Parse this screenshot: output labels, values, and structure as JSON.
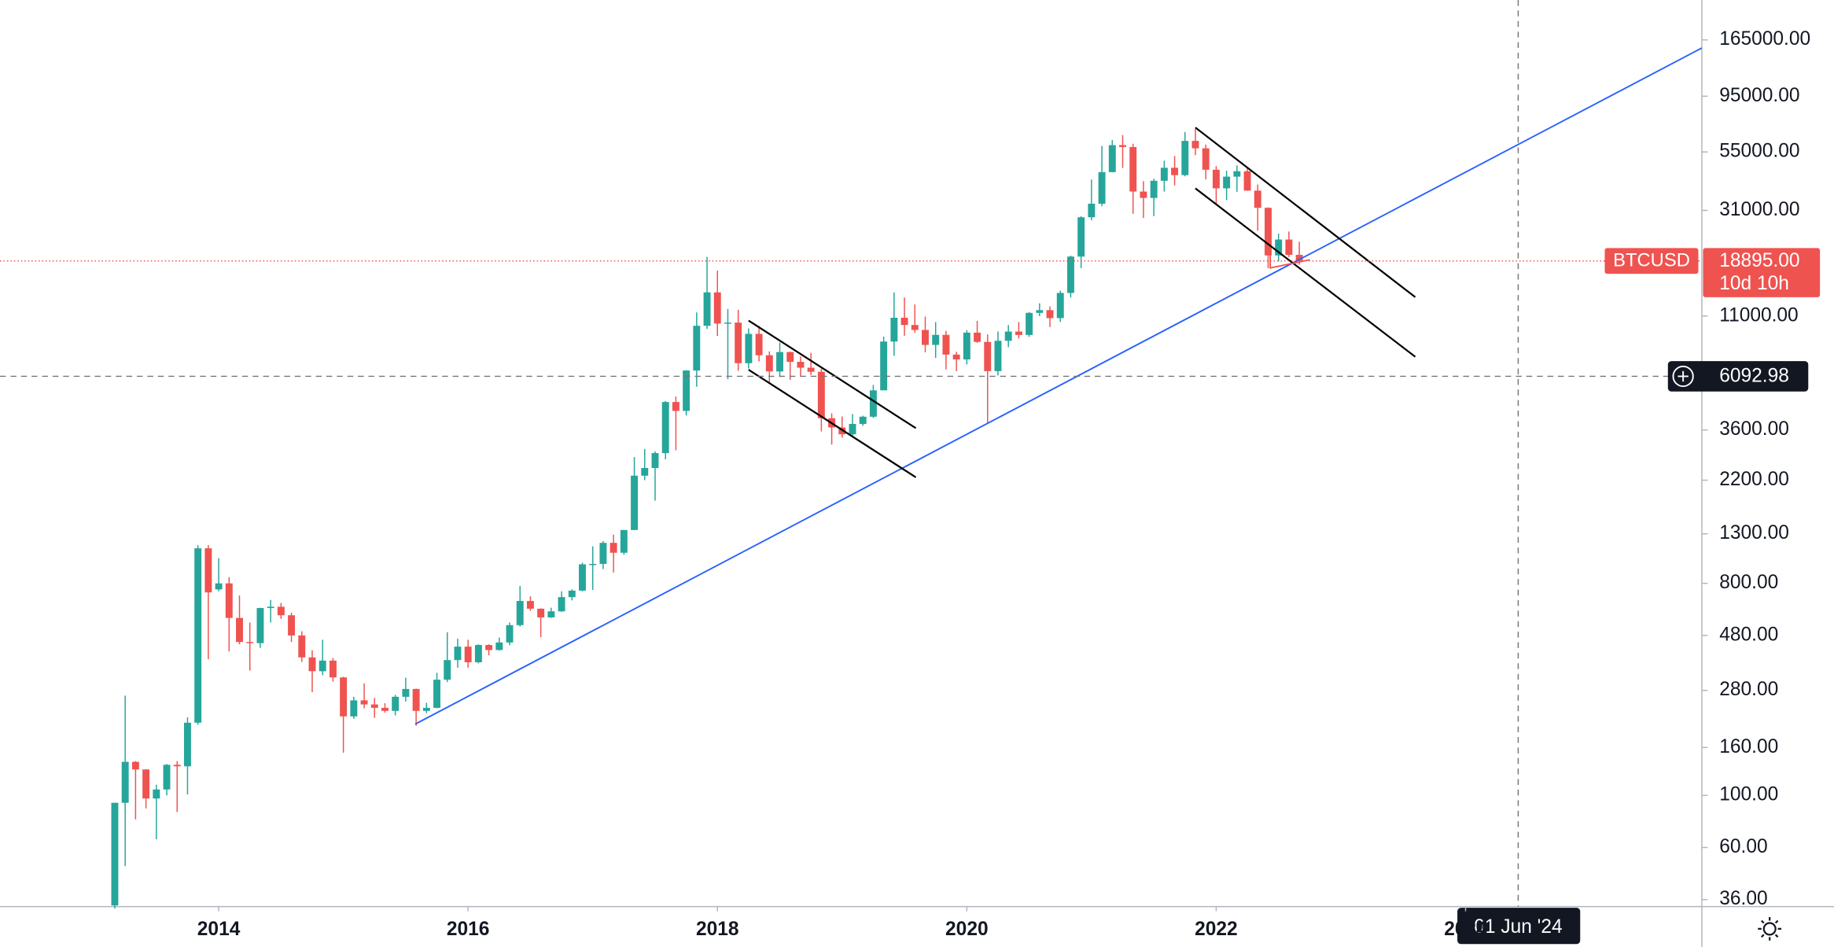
{
  "chart_data": {
    "type": "candlestick",
    "symbol": "BTCUSD",
    "log_scale": true,
    "up_color": "#26a69a",
    "down_color": "#ef5350",
    "x": [
      "2013-03",
      "2013-04",
      "2013-05",
      "2013-06",
      "2013-07",
      "2013-08",
      "2013-09",
      "2013-10",
      "2013-11",
      "2013-12",
      "2014-01",
      "2014-02",
      "2014-03",
      "2014-04",
      "2014-05",
      "2014-06",
      "2014-07",
      "2014-08",
      "2014-09",
      "2014-10",
      "2014-11",
      "2014-12",
      "2015-01",
      "2015-02",
      "2015-03",
      "2015-04",
      "2015-05",
      "2015-06",
      "2015-07",
      "2015-08",
      "2015-09",
      "2015-10",
      "2015-11",
      "2015-12",
      "2016-01",
      "2016-02",
      "2016-03",
      "2016-04",
      "2016-05",
      "2016-06",
      "2016-07",
      "2016-08",
      "2016-09",
      "2016-10",
      "2016-11",
      "2016-12",
      "2017-01",
      "2017-02",
      "2017-03",
      "2017-04",
      "2017-05",
      "2017-06",
      "2017-07",
      "2017-08",
      "2017-09",
      "2017-10",
      "2017-11",
      "2017-12",
      "2018-01",
      "2018-02",
      "2018-03",
      "2018-04",
      "2018-05",
      "2018-06",
      "2018-07",
      "2018-08",
      "2018-09",
      "2018-10",
      "2018-11",
      "2018-12",
      "2019-01",
      "2019-02",
      "2019-03",
      "2019-04",
      "2019-05",
      "2019-06",
      "2019-07",
      "2019-08",
      "2019-09",
      "2019-10",
      "2019-11",
      "2019-12",
      "2020-01",
      "2020-02",
      "2020-03",
      "2020-04",
      "2020-05",
      "2020-06",
      "2020-07",
      "2020-08",
      "2020-09",
      "2020-10",
      "2020-11",
      "2020-12",
      "2021-01",
      "2021-02",
      "2021-03",
      "2021-04",
      "2021-05",
      "2021-06",
      "2021-07",
      "2021-08",
      "2021-09",
      "2021-10",
      "2021-11",
      "2021-12",
      "2022-01",
      "2022-02",
      "2022-03",
      "2022-04",
      "2022-05",
      "2022-06",
      "2022-07",
      "2022-08",
      "2022-09"
    ],
    "open": [
      34,
      93,
      139,
      129,
      97,
      106,
      135,
      133,
      204,
      1128,
      754,
      800,
      570,
      450,
      445,
      628,
      636,
      585,
      480,
      387,
      338,
      375,
      318,
      217,
      254,
      244,
      236,
      229,
      263,
      284,
      229,
      236,
      311,
      377,
      430,
      369,
      437,
      416,
      448,
      531,
      673,
      624,
      573,
      608,
      699,
      745,
      964,
      968,
      1190,
      1080,
      1350,
      2300,
      2480,
      2870,
      4735,
      4340,
      6450,
      10000,
      13880,
      10220,
      10320,
      6930,
      9240,
      7490,
      6390,
      7730,
      7020,
      6630,
      6370,
      4040,
      3690,
      3450,
      3820,
      4100,
      5310,
      8570,
      10820,
      10080,
      9600,
      8290,
      9150,
      7540,
      7190,
      9350,
      8540,
      6410,
      8630,
      9450,
      9140,
      11350,
      11660,
      10780,
      13800,
      19710,
      28990,
      33100,
      45140,
      58800,
      57720,
      37300,
      35040,
      41460,
      47100,
      43820,
      61300,
      57000,
      46200,
      38500,
      43170,
      45530,
      37640,
      31800,
      19940,
      23300,
      20050
    ],
    "high": [
      93,
      266,
      140,
      129,
      111,
      136,
      140,
      215,
      1163,
      1163,
      1024,
      850,
      710,
      545,
      630,
      680,
      660,
      600,
      500,
      415,
      460,
      385,
      320,
      263,
      300,
      260,
      247,
      268,
      317,
      285,
      248,
      333,
      495,
      465,
      460,
      440,
      440,
      470,
      545,
      780,
      704,
      626,
      630,
      740,
      755,
      980,
      1150,
      1210,
      1290,
      1350,
      2760,
      2990,
      2920,
      4780,
      5000,
      6470,
      11400,
      19670,
      17180,
      11790,
      11700,
      9750,
      9980,
      7780,
      8490,
      7760,
      7400,
      7670,
      6570,
      4240,
      4110,
      4210,
      4140,
      5600,
      9000,
      13880,
      13180,
      12330,
      10950,
      10370,
      9510,
      7750,
      9580,
      10500,
      9190,
      9460,
      10080,
      10380,
      11450,
      12470,
      12090,
      14100,
      19900,
      29300,
      41950,
      58350,
      61780,
      64900,
      59600,
      41300,
      42300,
      50500,
      52900,
      66930,
      69000,
      59100,
      47900,
      45800,
      48200,
      47400,
      40000,
      31950,
      24680,
      25200,
      22800
    ],
    "low": [
      33,
      50,
      79,
      88,
      65,
      100,
      85,
      101,
      200,
      380,
      740,
      410,
      440,
      340,
      425,
      545,
      565,
      450,
      370,
      275,
      325,
      305,
      152,
      212,
      235,
      214,
      225,
      219,
      251,
      198,
      224,
      235,
      304,
      350,
      350,
      365,
      395,
      414,
      436,
      524,
      611,
      472,
      570,
      605,
      677,
      740,
      750,
      920,
      890,
      1060,
      1350,
      2200,
      1800,
      2700,
      2950,
      4150,
      5500,
      9700,
      9050,
      5920,
      6430,
      6580,
      7060,
      5755,
      6090,
      5880,
      6100,
      6170,
      3550,
      3120,
      3340,
      3400,
      3750,
      4050,
      5320,
      7450,
      9070,
      9340,
      7710,
      7300,
      6520,
      6410,
      6850,
      8460,
      3850,
      6150,
      8110,
      8830,
      8970,
      10990,
      9880,
      10380,
      13200,
      17600,
      28130,
      32300,
      45000,
      47000,
      30000,
      28800,
      29300,
      37300,
      39600,
      43300,
      53300,
      42000,
      32900,
      34300,
      37200,
      37600,
      25400,
      17600,
      18800,
      19600,
      18200
    ],
    "close": [
      93,
      139,
      129,
      97,
      106,
      135,
      133,
      204,
      1128,
      732,
      800,
      570,
      450,
      445,
      628,
      636,
      585,
      480,
      387,
      338,
      375,
      318,
      217,
      254,
      244,
      236,
      229,
      263,
      284,
      229,
      236,
      311,
      377,
      430,
      369,
      437,
      416,
      448,
      531,
      673,
      624,
      573,
      608,
      699,
      745,
      964,
      968,
      1190,
      1080,
      1350,
      2300,
      2480,
      2870,
      4735,
      4340,
      6450,
      10000,
      13880,
      10220,
      10320,
      6930,
      9240,
      7490,
      6390,
      7730,
      7020,
      6630,
      6370,
      4040,
      3690,
      3450,
      3820,
      4100,
      5310,
      8570,
      10820,
      10080,
      9600,
      8290,
      9150,
      7540,
      7190,
      9350,
      8540,
      6410,
      8630,
      9450,
      9140,
      11350,
      11660,
      10780,
      13800,
      19710,
      28990,
      33100,
      45140,
      58800,
      57720,
      37300,
      35040,
      41460,
      47100,
      43820,
      61300,
      57000,
      46200,
      38500,
      43170,
      45530,
      37640,
      31800,
      19940,
      23300,
      20050,
      18895
    ],
    "xlim": [
      2012.246,
      2025.895
    ],
    "xticks": [
      2014,
      2016,
      2018,
      2020,
      2022,
      2024
    ],
    "ylim": [
      33.6,
      244000
    ],
    "yticks": [
      {
        "value": 36,
        "label": "36.00"
      },
      {
        "value": 60,
        "label": "60.00"
      },
      {
        "value": 100,
        "label": "100.00"
      },
      {
        "value": 160,
        "label": "160.00"
      },
      {
        "value": 280,
        "label": "280.00"
      },
      {
        "value": 480,
        "label": "480.00"
      },
      {
        "value": 800,
        "label": "800.00"
      },
      {
        "value": 1300,
        "label": "1300.00"
      },
      {
        "value": 2200,
        "label": "2200.00"
      },
      {
        "value": 3600,
        "label": "3600.00"
      },
      {
        "value": 11000,
        "label": "11000.00"
      },
      {
        "value": 31000,
        "label": "31000.00"
      },
      {
        "value": 55000,
        "label": "55000.00"
      },
      {
        "value": 95000,
        "label": "95000.00"
      },
      {
        "value": 165000,
        "label": "165000.00"
      }
    ],
    "last_price": {
      "value": 18895,
      "label": "18895.00"
    },
    "countdown": "10d 10h",
    "crosshair": {
      "price": {
        "value": 6092.98,
        "label": "6092.98"
      },
      "date": "01 Jun '24"
    }
  }
}
